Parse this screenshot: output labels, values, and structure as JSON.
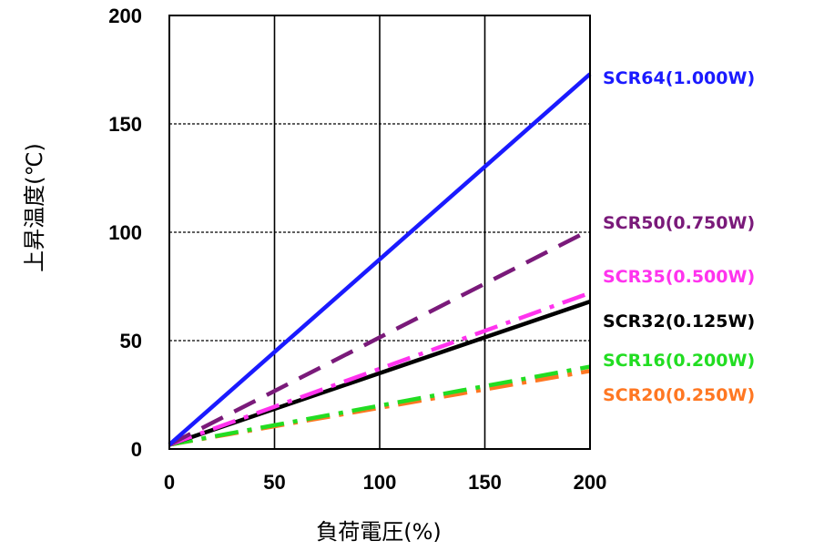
{
  "chart_data": {
    "type": "line",
    "title": "",
    "xlabel": "負荷電圧(%)",
    "ylabel": "上昇温度(℃)",
    "xlim": [
      0,
      200
    ],
    "ylim": [
      0,
      200
    ],
    "xticks": [
      "0",
      "50",
      "100",
      "150",
      "200"
    ],
    "yticks": [
      "0",
      "50",
      "100",
      "150",
      "200"
    ],
    "grid": true,
    "legend": "right",
    "series": [
      {
        "name": "SCR64(1.000W)",
        "color": "#1a1aff",
        "style": "solid",
        "x": [
          0,
          200
        ],
        "y": [
          2,
          173
        ]
      },
      {
        "name": "SCR50(0.750W)",
        "color": "#7a1a7a",
        "style": "dash",
        "x": [
          0,
          200
        ],
        "y": [
          2,
          101
        ]
      },
      {
        "name": "SCR35(0.500W)",
        "color": "#ff33ee",
        "style": "dashdot",
        "x": [
          0,
          200
        ],
        "y": [
          2,
          72
        ]
      },
      {
        "name": "SCR32(0.125W)",
        "color": "#000000",
        "style": "solid",
        "x": [
          0,
          200
        ],
        "y": [
          2,
          68
        ]
      },
      {
        "name": "SCR16(0.200W)",
        "color": "#22dd22",
        "style": "dashdot",
        "x": [
          0,
          200
        ],
        "y": [
          2,
          38
        ]
      },
      {
        "name": "SCR20(0.250W)",
        "color": "#ff7722",
        "style": "dashdot",
        "x": [
          0,
          200
        ],
        "y": [
          2,
          36
        ]
      }
    ]
  }
}
